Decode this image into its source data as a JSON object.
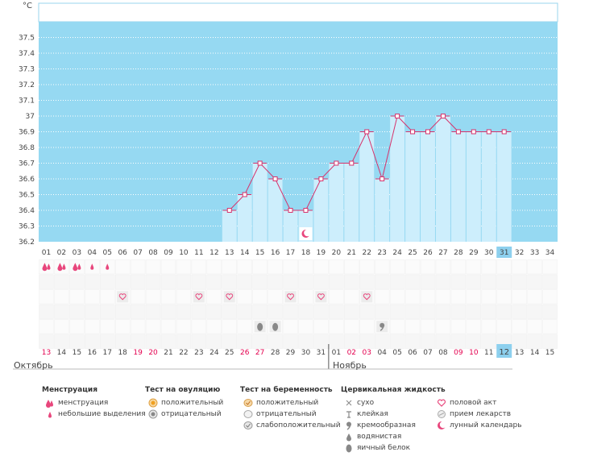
{
  "chart_data": {
    "type": "line",
    "title": "",
    "ylabel": "°C",
    "y_ticks": [
      "36.2",
      "36.3",
      "36.4",
      "36.5",
      "36.6",
      "36.7",
      "36.8",
      "36.9",
      "37",
      "37.1",
      "37.2",
      "37.3",
      "37.4",
      "37.5"
    ],
    "ylim": [
      36.2,
      37.6
    ],
    "cycle_days": [
      "01",
      "02",
      "03",
      "04",
      "05",
      "06",
      "07",
      "08",
      "09",
      "10",
      "11",
      "12",
      "13",
      "14",
      "15",
      "16",
      "17",
      "18",
      "19",
      "20",
      "21",
      "22",
      "23",
      "24",
      "25",
      "26",
      "27",
      "28",
      "29",
      "30",
      "31",
      "32",
      "33",
      "34"
    ],
    "current_day_index": 30,
    "temperatures": [
      null,
      null,
      null,
      null,
      null,
      null,
      null,
      null,
      null,
      null,
      null,
      null,
      36.4,
      36.5,
      36.7,
      36.6,
      36.4,
      36.4,
      36.6,
      36.7,
      36.7,
      36.9,
      36.6,
      37.0,
      36.9,
      36.9,
      37.0,
      36.9,
      36.9,
      36.9,
      36.9,
      null,
      null,
      null
    ],
    "moon_day_index": 17,
    "menstruation": [
      {
        "day_index": 0,
        "kind": "heavy"
      },
      {
        "day_index": 1,
        "kind": "heavy"
      },
      {
        "day_index": 2,
        "kind": "heavy"
      },
      {
        "day_index": 3,
        "kind": "light"
      },
      {
        "day_index": 4,
        "kind": "light"
      }
    ],
    "intercourse_day_indices": [
      5,
      10,
      12,
      16,
      18,
      21
    ],
    "cervical_fluid": [
      {
        "day_index": 14,
        "kind": "egg-white"
      },
      {
        "day_index": 15,
        "kind": "egg-white"
      },
      {
        "day_index": 22,
        "kind": "creamy"
      }
    ],
    "dates": [
      "13",
      "14",
      "15",
      "16",
      "17",
      "18",
      "19",
      "20",
      "21",
      "22",
      "23",
      "24",
      "25",
      "26",
      "27",
      "28",
      "29",
      "30",
      "31",
      "01",
      "02",
      "03",
      "04",
      "05",
      "06",
      "07",
      "08",
      "09",
      "10",
      "11",
      "12",
      "13",
      "14",
      "15"
    ],
    "weekend_date_indices": [
      0,
      6,
      7,
      13,
      14,
      20,
      21,
      27,
      28
    ],
    "today_date_index": 30,
    "month_boundary_index": 19,
    "months": [
      "Октябрь",
      "Ноябрь"
    ]
  },
  "legend": {
    "menstruation": {
      "title": "Менструация",
      "items": [
        "менструация",
        "небольшие выделения"
      ]
    },
    "ovulation": {
      "title": "Тест на овуляцию",
      "items": [
        "положительный",
        "отрицательный"
      ]
    },
    "pregnancy": {
      "title": "Тест на беременность",
      "items": [
        "положительный",
        "отрицательный",
        "слабоположительный"
      ]
    },
    "cervical": {
      "title": "Цервикальная жидкость",
      "items": [
        "сухо",
        "клейкая",
        "кремообразная",
        "водянистая",
        "яичный белок"
      ]
    },
    "other": {
      "items": [
        "половой акт",
        "прием лекарств",
        "лунный календарь"
      ]
    }
  },
  "colors": {
    "plot_bg": "#96d9f2",
    "bar_fill": "#cdeefc",
    "line": "#d6336c",
    "today": "#8dd0ee",
    "weekend": "#e4004f",
    "grid": "#ffffff"
  }
}
